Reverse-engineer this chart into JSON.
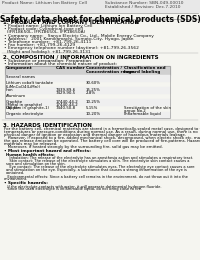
{
  "bg_color": "#f5f5f0",
  "header_line1": "Product Name: Lithium Ion Battery Cell",
  "header_line2_left": "Substance Number: SBN-049-00010",
  "header_line2_right": "Established / Revision: Dec.7.2010",
  "title": "Safety data sheet for chemical products (SDS)",
  "section1_title": "1. PRODUCT AND COMPANY IDENTIFICATION",
  "section1_lines": [
    "• Product name: Lithium Ion Battery Cell",
    "• Product code: Cylindrical-type cell",
    "  (IFR18650L, IFR18650L, IFR18650A)",
    "• Company name:   Sanyo Electric Co., Ltd., Mobile Energy Company",
    "• Address:   2001 Kamikamachi, Sumoto-City, Hyogo, Japan",
    "• Telephone number:  +81-799-26-4111",
    "• Fax number: +81-799-26-4129",
    "• Emergency telephone number (daytime): +81-799-26-3562",
    "  (Night and holiday): +81-799-26-3131"
  ],
  "section2_title": "2. COMPOSITION / INFORMATION ON INGREDIENTS",
  "section2_sub": "• Substance or preparation: Preparation",
  "section2_sub2": "• Information about the chemical nature of product:",
  "table_headers": [
    "Component",
    "CAS number",
    "Concentration /\nConcentration range",
    "Classification and\nhazard labeling"
  ],
  "table_col1": [
    "Several names",
    "Lithium cobalt tantalate\n(LiMnCoO4(LiMn))",
    "Iron",
    "Aluminum",
    "Graphite\n(Metal in graphite)\n(All film in graphite-1)",
    "Copper",
    "Organic electrolyte"
  ],
  "table_col2": [
    "",
    "",
    "7439-89-6\n7429-90-5",
    "",
    "17440-44-2\n17440-44-2",
    "7440-50-8",
    ""
  ],
  "table_col3": [
    "",
    "30-60%",
    "15-25%\n2-8%",
    "",
    "10-25%",
    "5-15%",
    "10-20%"
  ],
  "table_col4": [
    "",
    "",
    "",
    "",
    "",
    "Sensitization of the skin\ngroup No.2",
    "Inflammable liquid"
  ],
  "section3_title": "3. HAZARDS IDENTIFICATION",
  "section3_para1": "For the battery cell, chemical materials are stored in a hermetically-sealed metal case, designed to withstand\ntemperatures or pressure-conditions during normal use. As a result, during normal use, there is no\nphysical danger of ignition or explosion and thermal danger of hazardous materials leakage.\n   However, if exposed to a fire, added mechanical shock, decomposed, when electric shock etc. may cause\nthe gas release emission be operated. The battery cell core will be produced of fire-patterns. Hazardous\nmaterials may be released.\n   Moreover, if heated strongly by the surrounding fire, solid gas may be emitted.",
  "section3_sub1": "• Most important hazard and effects:",
  "section3_sub1a": "Human health effects:",
  "section3_sub1a_text": "   Inhalation: The release of the electrolyte has an anesthesia action and stimulates a respiratory tract.\n   Skin contact: The release of the electrolyte stimulates a skin. The electrolyte skin contact causes a\nsore and stimulation on the skin.\n   Eye contact: The release of the electrolyte stimulates eyes. The electrolyte eye contact causes a sore\nand stimulation on the eye. Especially, a substance that causes a strong inflammation of the eye is\ncontained.",
  "section3_env": "   Environmental effects: Since a battery cell remains in the environment, do not throw out it into the\nenvironment.",
  "section3_sub2": "• Specific hazards:",
  "section3_sub2_text": "   If the electrolyte contacts with water, it will generate detrimental hydrogen fluoride.\n   Since the used electrolyte is inflammable liquid, do not bring close to fire."
}
